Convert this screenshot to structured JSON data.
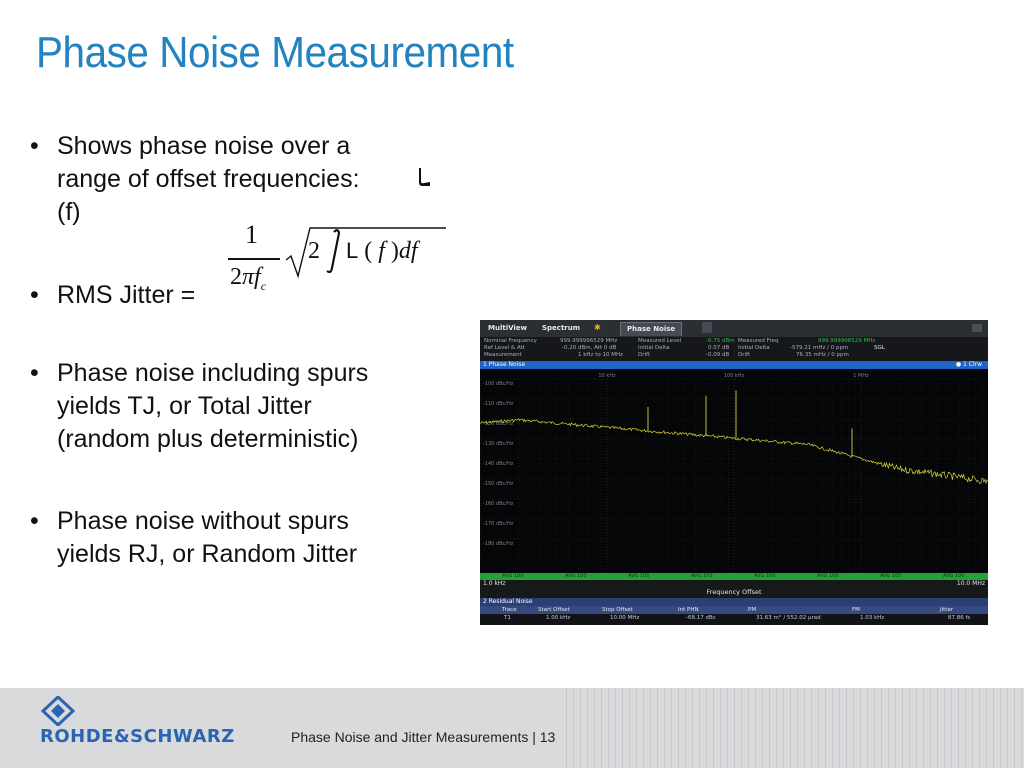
{
  "slide": {
    "title": "Phase Noise Measurement",
    "bullets": [
      {
        "line1": "Shows phase noise over a",
        "line2": "range of offset frequencies:",
        "line3": "(f)"
      },
      {
        "line1": "RMS Jitter ="
      },
      {
        "line1": "Phase noise including spurs",
        "line2": "yields TJ, or Total Jitter",
        "line3": "(random plus deterministic)"
      },
      {
        "line1": "Phase noise without spurs",
        "line2": "yields RJ, or Random Jitter"
      }
    ],
    "bullet_symbol": "•",
    "formula": {
      "numerator": "1",
      "den_prefix": "2",
      "den_pi": "π",
      "den_f": "f",
      "den_sub": "c",
      "two": "2",
      "L": "L",
      "open": " ( ",
      "f": "f",
      "close": " )",
      "df": "df"
    }
  },
  "analyzer": {
    "tabs": [
      "MultiView",
      "Spectrum",
      "Phase Noise"
    ],
    "info": {
      "nominal_frequency_label": "Nominal Frequency",
      "nominal_frequency": "999.999996529 MHz",
      "ref_level_label": "Ref Level & Att",
      "ref_level": "-0.20 dBm, Att 0 dB",
      "measurement_label": "Measurement",
      "measurement": "1 kHz to 10 MHz",
      "measured_level_label": "Measured Level",
      "measured_level": "-0.75 dBm",
      "initial_delta_label": "Initial Delta",
      "initial_delta": "0.07 dB",
      "drift_label": "Drift",
      "drift": "-0.09 dB",
      "measured_freq_label": "Measured Freq",
      "measured_freq": "999.999996529 MHz",
      "initial_delta2": "-579.21 mHz / 0 ppm",
      "drift2": "76.35 mHz / 0 ppm",
      "sgl": "SGL"
    },
    "window1_title": "1 Phase Noise",
    "window1_right": "● 1 Clrw",
    "y_labels": [
      "-100 dBc/Hz",
      "-110 dBc/Hz",
      "-120 dBc/Hz",
      "-130 dBc/Hz",
      "-140 dBc/Hz",
      "-150 dBc/Hz",
      "-160 dBc/Hz",
      "-170 dBc/Hz",
      "-180 dBc/Hz"
    ],
    "decade_labels": [
      "10 kHz",
      "100 kHz",
      "1 MHz"
    ],
    "avg_labels": [
      "AVG 100",
      "AVG 100",
      "AVG 100",
      "AVG 100",
      "AVG 100",
      "AVG 100",
      "AVG 100",
      "AVG 100"
    ],
    "x_start": "1.0 kHz",
    "x_stop": "10.0 MHz",
    "x_axis_title": "Frequency Offset",
    "window2_title": "2 Residual Noise",
    "table_headers": [
      "Trace",
      "Start Offset",
      "Stop Offset",
      "Int PHN",
      "PM",
      "FM",
      "Jitter"
    ],
    "table_row": [
      "T1",
      "1.00 kHz",
      "10.00 MHz",
      "-68.17 dBc",
      "31.63 m° / 552.02 µrad",
      "1.03 kHz",
      "87.86 fs"
    ],
    "colors": {
      "trace": "#d8d23a",
      "window_bar": "#2264c6",
      "avg_bar": "#23a336",
      "grid": "#2a2e2a"
    }
  },
  "footer": {
    "brand": "ROHDE&SCHWARZ",
    "text": "Phase Noise and Jitter Measurements  |  13"
  }
}
